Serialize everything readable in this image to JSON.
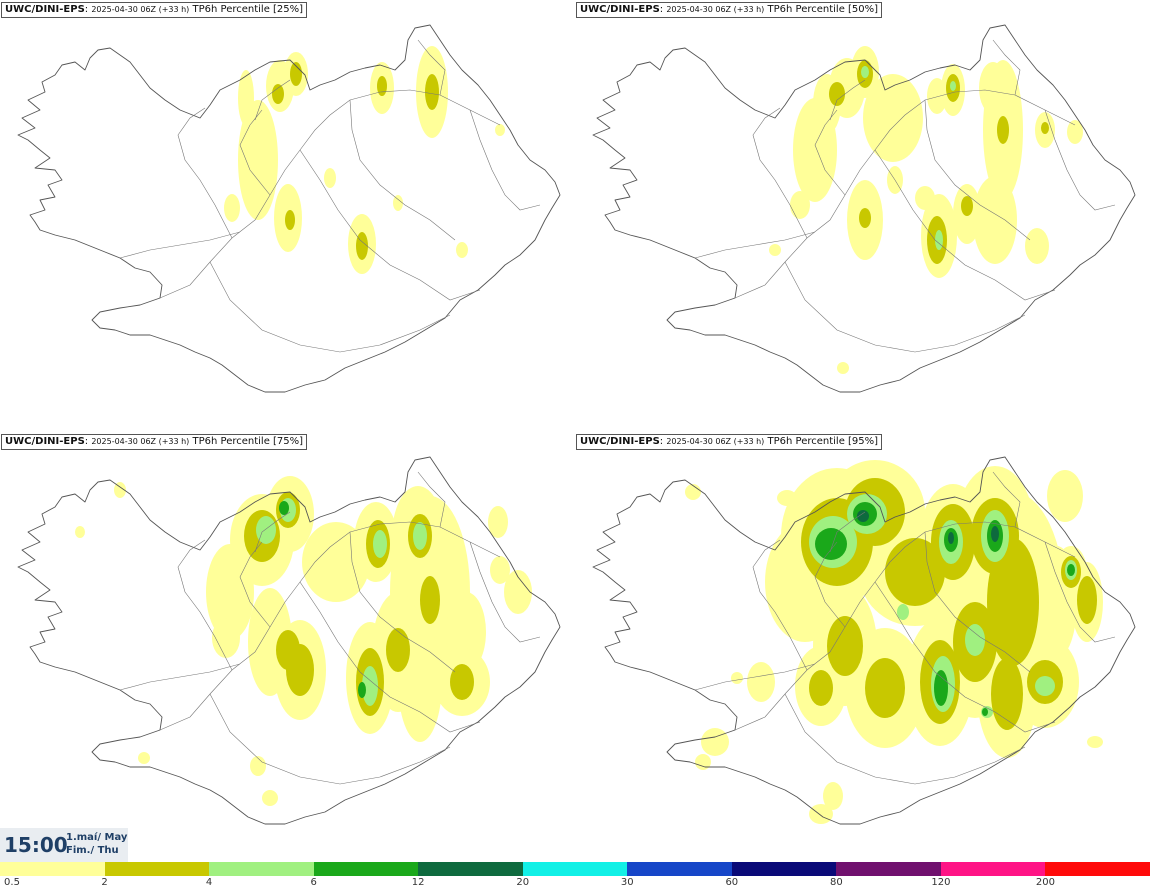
{
  "panels": [
    {
      "model": "UWC/DINI-EPS",
      "run": "2025-04-30 06Z (+33 h)",
      "param": "TP6h Percentile [25%]",
      "intensity": 0
    },
    {
      "model": "UWC/DINI-EPS",
      "run": "2025-04-30 06Z (+33 h)",
      "param": "TP6h Percentile [50%]",
      "intensity": 1
    },
    {
      "model": "UWC/DINI-EPS",
      "run": "2025-04-30 06Z (+33 h)",
      "param": "TP6h Percentile [75%]",
      "intensity": 2
    },
    {
      "model": "UWC/DINI-EPS",
      "run": "2025-04-30 06Z (+33 h)",
      "param": "TP6h Percentile [95%]",
      "intensity": 3
    }
  ],
  "valid_time": {
    "hour": "15:00",
    "date_line1": "1.maí/ May",
    "date_line2": "Fim./ Thu"
  },
  "legend": {
    "colors": [
      "#ffff99",
      "#c8c800",
      "#a0f080",
      "#1aa81a",
      "#0e6a3e",
      "#12f0e6",
      "#1646c8",
      "#0a0a78",
      "#70106e",
      "#ff1486",
      "#ff0a0a"
    ],
    "labels": [
      "0.5",
      "2",
      "4",
      "6",
      "12",
      "20",
      "30",
      "60",
      "80",
      "120",
      "200"
    ]
  }
}
